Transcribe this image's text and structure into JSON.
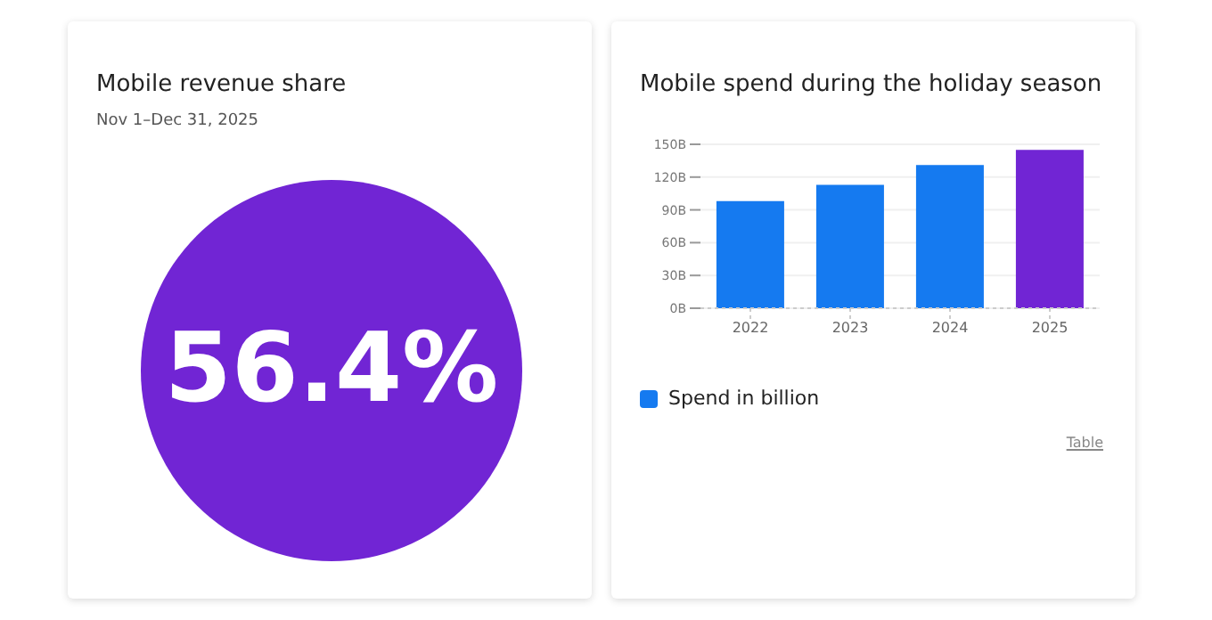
{
  "chart_data": [
    {
      "type": "other",
      "title": "Mobile revenue share",
      "subtitle": "Nov 1–Dec 31, 2025",
      "annotations": [
        "56.4%"
      ],
      "color": "#7125d4"
    },
    {
      "type": "bar",
      "title": "Mobile spend during the holiday season",
      "categories": [
        "2022",
        "2023",
        "2024",
        "2025"
      ],
      "series": [
        {
          "name": "Spend in billion",
          "color": "#157af0",
          "colors": [
            "#157af0",
            "#157af0",
            "#157af0",
            "#7125d4"
          ],
          "values": [
            98,
            113,
            131,
            145
          ]
        }
      ],
      "ylim": [
        0,
        150
      ],
      "yticks": [
        {
          "value": 0,
          "label": "0B"
        },
        {
          "value": 30,
          "label": "30B"
        },
        {
          "value": 60,
          "label": "60B"
        },
        {
          "value": 90,
          "label": "90B"
        },
        {
          "value": 120,
          "label": "120B"
        },
        {
          "value": 150,
          "label": "150B"
        }
      ],
      "grid": "y",
      "legend": "bottom left",
      "annotations": [
        "Table"
      ]
    }
  ]
}
